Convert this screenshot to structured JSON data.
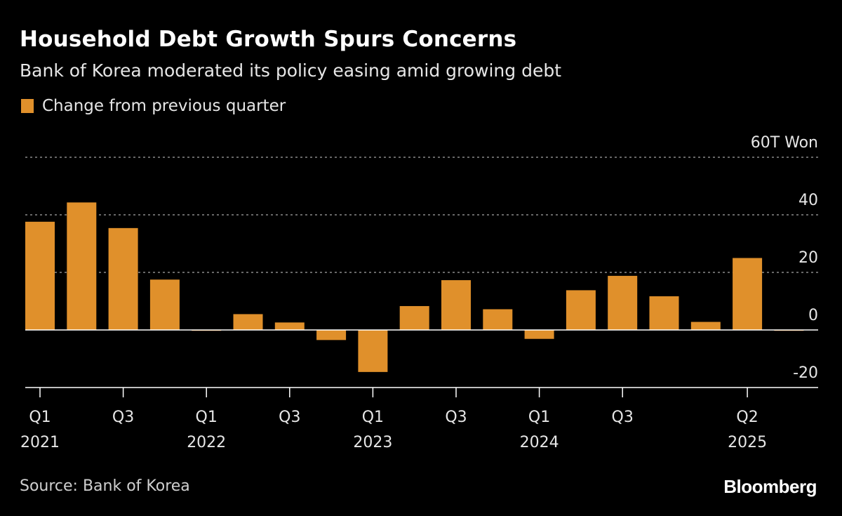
{
  "brand": "Bloomberg",
  "source": "Source: Bank of Korea",
  "chart_data": {
    "type": "bar",
    "title": "Household Debt Growth Spurs Concerns",
    "subtitle": "Bank of Korea moderated its policy easing amid growing debt",
    "legend": [
      {
        "label": "Change from previous quarter",
        "color": "#e0902b"
      }
    ],
    "unit_label": "60T Won",
    "yticks": [
      {
        "value": 60,
        "label": "60T Won"
      },
      {
        "value": 40,
        "label": "40"
      },
      {
        "value": 20,
        "label": "20"
      },
      {
        "value": 0,
        "label": "0"
      },
      {
        "value": -20,
        "label": "-20"
      }
    ],
    "ylim": [
      -20,
      60
    ],
    "categories": [
      "Q1 2021",
      "Q2 2021",
      "Q3 2021",
      "Q4 2021",
      "Q1 2022",
      "Q2 2022",
      "Q3 2022",
      "Q4 2022",
      "Q1 2023",
      "Q2 2023",
      "Q3 2023",
      "Q4 2023",
      "Q1 2024",
      "Q2 2024",
      "Q3 2024",
      "Q4 2024",
      "Q1 2025",
      "Q2 2025",
      "Q3 2025"
    ],
    "values": [
      37.6,
      44.3,
      35.4,
      17.5,
      -0.2,
      5.5,
      2.6,
      -3.5,
      -14.6,
      8.3,
      17.3,
      7.2,
      -3.1,
      13.8,
      18.8,
      11.7,
      2.8,
      25.0,
      -0.2
    ],
    "xtick_labels": [
      {
        "index": 0,
        "label": "Q1",
        "year": "2021"
      },
      {
        "index": 2,
        "label": "Q3",
        "year": ""
      },
      {
        "index": 4,
        "label": "Q1",
        "year": "2022"
      },
      {
        "index": 6,
        "label": "Q3",
        "year": ""
      },
      {
        "index": 8,
        "label": "Q1",
        "year": "2023"
      },
      {
        "index": 10,
        "label": "Q3",
        "year": ""
      },
      {
        "index": 12,
        "label": "Q1",
        "year": "2024"
      },
      {
        "index": 14,
        "label": "Q3",
        "year": ""
      },
      {
        "index": 17,
        "label": "Q2",
        "year": "2025"
      }
    ],
    "xlabel": "",
    "ylabel": "",
    "grid": true,
    "legend_position": "top-left",
    "colors": {
      "bar": "#e0902b",
      "grid": "#8a8a8a",
      "axis": "#ffffff"
    }
  }
}
